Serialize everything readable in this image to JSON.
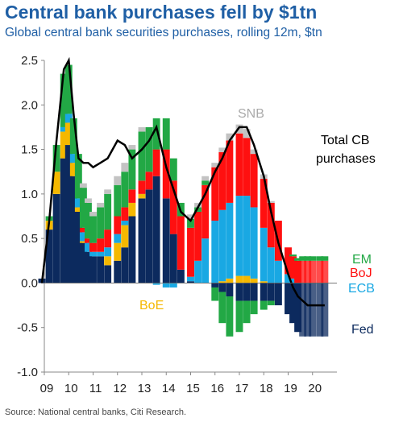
{
  "title": "Central bank purchases fell by $1tn",
  "subtitle": "Global central bank securities purchases, rolling 12m, $tn",
  "source": "Source: National central banks, Citi Research.",
  "colors": {
    "Fed": "#0c2a5e",
    "ECB": "#19a8e3",
    "BoJ": "#ff1010",
    "EM": "#22a845",
    "BoE": "#f5b800",
    "SNB": "#c3c3c3",
    "Total": "#000000"
  },
  "chart_data": {
    "type": "area",
    "title": "Central bank purchases fell by $1tn",
    "ylim": [
      -1.0,
      2.5
    ],
    "yticks": [
      "2.5",
      "2.0",
      "1.5",
      "1.0",
      "0.5",
      "0.0",
      "-0.5",
      "-1.0"
    ],
    "ytick_values": [
      2.5,
      2.0,
      1.5,
      1.0,
      0.5,
      0.0,
      -0.5,
      -1.0
    ],
    "xlim": [
      2009.0,
      2021.0
    ],
    "xticks": [
      "09",
      "10",
      "11",
      "12",
      "13",
      "14",
      "15",
      "16",
      "17",
      "18",
      "19",
      "20"
    ],
    "xtick_values": [
      2009.0,
      2010.0,
      2011.0,
      2012.0,
      2013.0,
      2014.0,
      2015.0,
      2016.0,
      2017.0,
      2018.0,
      2019.0,
      2020.0
    ],
    "x": [
      2008.9,
      2009.2,
      2009.5,
      2009.8,
      2010.0,
      2010.2,
      2010.4,
      2010.6,
      2010.8,
      2011.0,
      2011.3,
      2011.6,
      2012.0,
      2012.3,
      2012.6,
      2013.0,
      2013.3,
      2013.6,
      2014.0,
      2014.3,
      2014.6,
      2015.0,
      2015.3,
      2015.6,
      2016.0,
      2016.3,
      2016.6,
      2017.0,
      2017.3,
      2017.6,
      2018.0,
      2018.3,
      2018.6,
      2019.0,
      2019.2,
      2019.4,
      2019.6,
      2019.8,
      2020.0,
      2020.3,
      2020.5
    ],
    "series": [
      {
        "name": "Fed",
        "values": [
          0.05,
          0.6,
          1.0,
          1.4,
          1.55,
          1.2,
          0.8,
          0.45,
          0.35,
          0.3,
          0.3,
          0.2,
          0.25,
          0.4,
          0.75,
          0.95,
          1.05,
          1.2,
          0.95,
          0.55,
          0.15,
          0.02,
          0.0,
          0.0,
          -0.05,
          -0.1,
          -0.15,
          -0.2,
          -0.2,
          -0.2,
          -0.2,
          -0.2,
          -0.25,
          -0.35,
          -0.45,
          -0.55,
          -0.6,
          -0.6,
          -0.6,
          -0.6,
          -0.6
        ]
      },
      {
        "name": "BoE",
        "values": [
          0.0,
          0.1,
          0.25,
          0.3,
          0.25,
          0.15,
          0.05,
          0.02,
          0.0,
          0.0,
          0.0,
          0.1,
          0.2,
          0.25,
          0.15,
          0.05,
          0.0,
          0.0,
          0.0,
          0.0,
          0.0,
          0.0,
          0.0,
          0.0,
          0.0,
          0.02,
          0.05,
          0.08,
          0.08,
          0.05,
          0.02,
          0.0,
          0.0,
          0.0,
          0.0,
          0.0,
          0.0,
          0.0,
          0.0,
          0.0,
          0.0
        ]
      },
      {
        "name": "ECB",
        "values": [
          0.0,
          0.0,
          0.0,
          0.05,
          0.1,
          0.1,
          0.1,
          0.1,
          0.1,
          0.05,
          0.05,
          0.1,
          0.1,
          0.05,
          0.0,
          0.0,
          0.0,
          -0.02,
          -0.05,
          -0.05,
          0.0,
          0.05,
          0.25,
          0.5,
          0.7,
          0.8,
          0.85,
          0.9,
          0.9,
          0.8,
          0.6,
          0.4,
          0.25,
          0.1,
          0.05,
          0.0,
          0.0,
          0.0,
          0.0,
          0.0,
          0.0
        ]
      },
      {
        "name": "BoJ",
        "values": [
          0.0,
          0.0,
          0.0,
          0.0,
          0.0,
          0.0,
          0.0,
          0.05,
          0.05,
          0.1,
          0.15,
          0.2,
          0.2,
          0.15,
          0.15,
          0.15,
          0.2,
          0.3,
          0.55,
          0.6,
          0.6,
          0.55,
          0.55,
          0.6,
          0.6,
          0.65,
          0.7,
          0.7,
          0.65,
          0.6,
          0.55,
          0.5,
          0.45,
          0.3,
          0.25,
          0.25,
          0.25,
          0.25,
          0.25,
          0.25,
          0.25
        ]
      },
      {
        "name": "EM",
        "values": [
          0.0,
          0.05,
          0.3,
          0.6,
          0.55,
          0.4,
          0.5,
          0.45,
          0.4,
          0.3,
          0.35,
          0.4,
          0.35,
          0.4,
          0.45,
          0.55,
          0.5,
          0.35,
          0.35,
          0.25,
          0.15,
          0.1,
          0.05,
          0.05,
          -0.15,
          -0.35,
          -0.45,
          -0.35,
          -0.25,
          -0.15,
          -0.1,
          -0.05,
          0.0,
          0.0,
          0.02,
          0.03,
          0.05,
          0.05,
          0.05,
          0.05,
          0.05
        ]
      },
      {
        "name": "SNB",
        "values": [
          0.0,
          0.0,
          0.0,
          0.0,
          0.0,
          0.0,
          0.0,
          0.05,
          0.05,
          0.05,
          0.05,
          0.05,
          0.1,
          0.1,
          0.05,
          0.05,
          0.0,
          0.0,
          0.0,
          0.0,
          0.0,
          0.05,
          0.05,
          0.05,
          0.05,
          0.05,
          0.08,
          0.1,
          0.1,
          0.05,
          0.05,
          0.02,
          0.0,
          0.0,
          0.0,
          0.0,
          0.0,
          0.0,
          0.0,
          0.0,
          0.0
        ]
      },
      {
        "name": "Total CB purchases",
        "values": [
          0.0,
          0.7,
          1.6,
          2.4,
          2.5,
          1.9,
          1.4,
          1.35,
          1.35,
          1.3,
          1.35,
          1.4,
          1.6,
          1.55,
          1.4,
          1.5,
          1.6,
          1.75,
          1.3,
          1.05,
          0.8,
          0.7,
          0.85,
          1.0,
          1.25,
          1.4,
          1.6,
          1.75,
          1.75,
          1.55,
          1.2,
          0.8,
          0.45,
          0.1,
          -0.05,
          -0.15,
          -0.2,
          -0.25,
          -0.25,
          -0.25,
          -0.25
        ]
      }
    ],
    "labels": {
      "SNB": "SNB",
      "Total": "Total CB\npurchases",
      "Total_line1": "Total CB",
      "Total_line2": "purchases",
      "EM": "EM",
      "BoJ": "BoJ",
      "ECB": "ECB",
      "BoE": "BoE",
      "Fed": "Fed"
    }
  }
}
